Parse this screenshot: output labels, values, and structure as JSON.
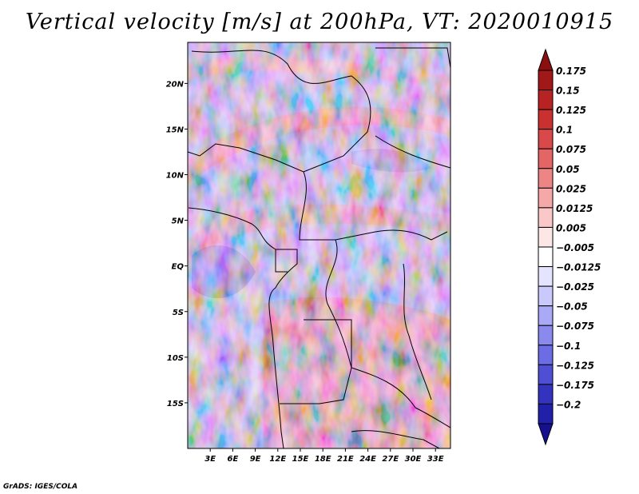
{
  "chart_data": {
    "type": "heatmap",
    "title": "Vertical velocity [m/s] at 200hPa, VT: 2020010915",
    "variable": "Vertical velocity",
    "units": "m/s",
    "level": "200hPa",
    "valid_time": "2020010915",
    "x_ticks": [
      {
        "value": 3,
        "label": "3E"
      },
      {
        "value": 6,
        "label": "6E"
      },
      {
        "value": 9,
        "label": "9E"
      },
      {
        "value": 12,
        "label": "12E"
      },
      {
        "value": 15,
        "label": "15E"
      },
      {
        "value": 18,
        "label": "18E"
      },
      {
        "value": 21,
        "label": "21E"
      },
      {
        "value": 24,
        "label": "24E"
      },
      {
        "value": 27,
        "label": "27E"
      },
      {
        "value": 30,
        "label": "30E"
      },
      {
        "value": 33,
        "label": "33E"
      }
    ],
    "y_ticks": [
      {
        "value": 20,
        "label": "20N"
      },
      {
        "value": 15,
        "label": "15N"
      },
      {
        "value": 10,
        "label": "10N"
      },
      {
        "value": 5,
        "label": "5N"
      },
      {
        "value": 0,
        "label": "EQ"
      },
      {
        "value": -5,
        "label": "5S"
      },
      {
        "value": -10,
        "label": "10S"
      },
      {
        "value": -15,
        "label": "15S"
      }
    ],
    "xlim": [
      0,
      35
    ],
    "ylim": [
      -20,
      24.5
    ],
    "colorbar": {
      "levels": [
        {
          "label": "0.175",
          "color": "#a01818"
        },
        {
          "label": "0.15",
          "color": "#b72323"
        },
        {
          "label": "0.125",
          "color": "#c93131"
        },
        {
          "label": "0.1",
          "color": "#d94949"
        },
        {
          "label": "0.075",
          "color": "#e46565"
        },
        {
          "label": "0.05",
          "color": "#ee8585"
        },
        {
          "label": "0.025",
          "color": "#f5a8a8"
        },
        {
          "label": "0.0125",
          "color": "#fac8c8"
        },
        {
          "label": "0.005",
          "color": "#fde6e6"
        },
        {
          "label": "-0.005",
          "color": "#ffffff"
        },
        {
          "label": "-0.0125",
          "color": "#e4e4ff"
        },
        {
          "label": "-0.025",
          "color": "#c9c9fb"
        },
        {
          "label": "-0.05",
          "color": "#a9a9f5"
        },
        {
          "label": "-0.075",
          "color": "#8a8aee"
        },
        {
          "label": "-0.1",
          "color": "#6c6ce4"
        },
        {
          "label": "-0.125",
          "color": "#4f4fd6"
        },
        {
          "label": "-0.175",
          "color": "#3333c0"
        },
        {
          "label": "-0.2",
          "color": "#2020a8"
        }
      ],
      "top_arrow_color": "#8c0f0f",
      "bottom_arrow_color": "#14108f",
      "extend": "both"
    }
  },
  "credit": "GrADS: IGES/COLA"
}
